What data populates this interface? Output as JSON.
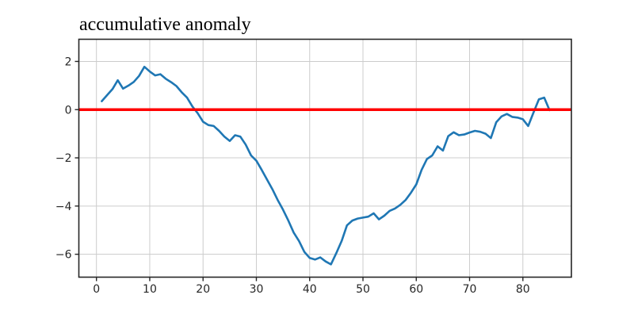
{
  "title": "accumulative anomaly",
  "colors": {
    "line": "#1f77b4",
    "zero_line": "#ff0000",
    "grid": "#cccccc",
    "spine": "#262626",
    "tick_label": "#262626",
    "background": "#ffffff"
  },
  "chart_data": {
    "type": "line",
    "title": "accumulative anomaly",
    "xlabel": "",
    "ylabel": "",
    "grid": true,
    "legend": null,
    "x_start": 1,
    "x_step": 1,
    "xlim": [
      -3.3,
      89.1
    ],
    "ylim": [
      -6.95,
      2.92
    ],
    "xticks": {
      "values": [
        0,
        10,
        20,
        30,
        40,
        50,
        60,
        70,
        80
      ],
      "labels": [
        "0",
        "10",
        "20",
        "30",
        "40",
        "50",
        "60",
        "70",
        "80"
      ]
    },
    "yticks": {
      "values": [
        2,
        0,
        -2,
        -4,
        -6
      ],
      "labels": [
        "2",
        "0",
        "−2",
        "−4",
        "−6"
      ]
    },
    "reference_lines": [
      {
        "name": "zero-line",
        "y": 0,
        "color": "#ff0000"
      }
    ],
    "series": [
      {
        "name": "accumulative anomaly",
        "color": "#1f77b4",
        "values": [
          0.35,
          0.6,
          0.85,
          1.22,
          0.87,
          1.0,
          1.15,
          1.4,
          1.78,
          1.58,
          1.42,
          1.47,
          1.28,
          1.14,
          0.98,
          0.72,
          0.5,
          0.13,
          -0.15,
          -0.5,
          -0.64,
          -0.68,
          -0.88,
          -1.12,
          -1.3,
          -1.06,
          -1.12,
          -1.45,
          -1.9,
          -2.12,
          -2.5,
          -2.9,
          -3.3,
          -3.75,
          -4.15,
          -4.6,
          -5.1,
          -5.45,
          -5.9,
          -6.15,
          -6.22,
          -6.13,
          -6.3,
          -6.42,
          -5.95,
          -5.45,
          -4.8,
          -4.6,
          -4.52,
          -4.48,
          -4.44,
          -4.3,
          -4.55,
          -4.4,
          -4.2,
          -4.1,
          -3.95,
          -3.75,
          -3.45,
          -3.1,
          -2.5,
          -2.05,
          -1.9,
          -1.52,
          -1.7,
          -1.1,
          -0.94,
          -1.06,
          -1.03,
          -0.95,
          -0.88,
          -0.92,
          -1.0,
          -1.18,
          -0.52,
          -0.28,
          -0.18,
          -0.3,
          -0.33,
          -0.4,
          -0.68,
          -0.12,
          0.43,
          0.5,
          -0.02
        ]
      }
    ]
  }
}
